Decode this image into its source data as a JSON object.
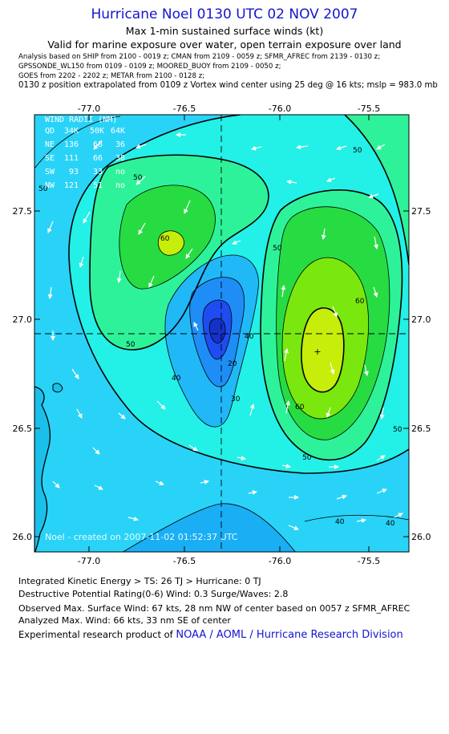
{
  "header": {
    "title": "Hurricane Noel 0130 UTC 02 NOV 2007",
    "subtitle": "Max 1-min sustained surface winds (kt)",
    "validity": "Valid for marine exposure over water, open terrain exposure over land",
    "analysis_line1": "Analysis based on  SHIP from 2100 - 0019 z;  CMAN from 2109 - 0059 z;  SFMR_AFREC from 2139 - 0130 z;",
    "analysis_line2": "GPSSONDE_WL150 from 0109 - 0109 z;  MOORED_BUOY from 2109 - 0050 z;",
    "analysis_line3": "GOES from 2202 - 2202 z;  METAR from 2100 - 0128 z;",
    "position_line": "0130 z position extrapolated from 0109 z Vortex wind center using 25 deg @ 16 kts; mslp = 983.0 mb"
  },
  "map": {
    "x_ticks": [
      "-77.0",
      "-76.5",
      "-76.0",
      "-75.5"
    ],
    "y_ticks": [
      "27.5",
      "27.0",
      "26.5",
      "26.0"
    ],
    "contour_labels": [
      "20",
      "30",
      "40",
      "50",
      "60"
    ],
    "watermark": "Noel - created on 2007-11-02 01:52:37 UTC",
    "center_marker": "+",
    "colors": {
      "c10": "#1e4cf0",
      "c20": "#1e8ef6",
      "c30": "#21b8f8",
      "c40": "#29d3f7",
      "c45": "#23f0e6",
      "c50": "#2ef29a",
      "c55": "#27dc42",
      "c60": "#7ae80f",
      "c65": "#c6ee0a",
      "land": "#1ac0ea"
    }
  },
  "wind_radii": {
    "title": "WIND RADII (NM)",
    "header": [
      "QD",
      "34K",
      "50K",
      "64K"
    ],
    "rows": [
      [
        "NE",
        "136",
        "68",
        "36"
      ],
      [
        "SE",
        "111",
        "66",
        "38"
      ],
      [
        "SW",
        "93",
        "33",
        "no"
      ],
      [
        "NW",
        "121",
        "51",
        "no"
      ]
    ]
  },
  "footer": {
    "ike": "Integrated Kinetic Energy > TS: 26 TJ   > Hurricane: 0 TJ",
    "dpr": "Destructive Potential Rating(0-6)   Wind: 0.3 Surge/Waves: 2.8",
    "observed": "Observed Max. Surface Wind: 67 kts, 28 nm NW of center based on 0057 z SFMR_AFREC",
    "analyzed": "Analyzed Max. Wind: 66 kts, 33 nm SE of center",
    "credit_prefix": "Experimental research product of ",
    "credit_org": "NOAA / AOML / Hurricane Research Division"
  }
}
